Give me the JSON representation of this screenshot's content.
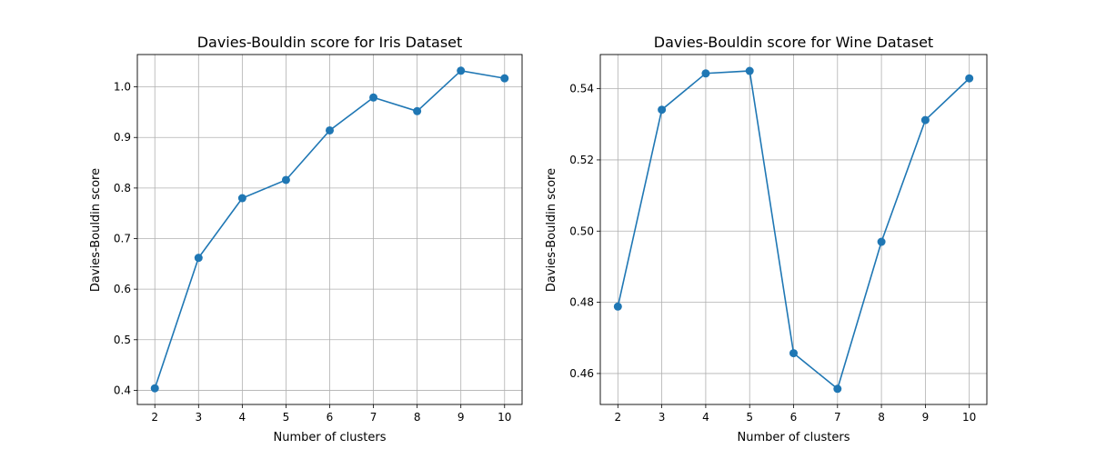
{
  "chart_data": [
    {
      "type": "line",
      "title": "Davies-Bouldin score for Iris Dataset",
      "xlabel": "Number of clusters",
      "ylabel": "Davies-Bouldin score",
      "x": [
        2,
        3,
        4,
        5,
        6,
        7,
        8,
        9,
        10
      ],
      "series": [
        {
          "values": [
            0.404,
            0.662,
            0.78,
            0.816,
            0.914,
            0.979,
            0.952,
            1.032,
            1.017
          ]
        }
      ],
      "xticks": [
        2,
        3,
        4,
        5,
        6,
        7,
        8,
        9,
        10
      ],
      "yticks": [
        0.4,
        0.5,
        0.6,
        0.7,
        0.8,
        0.9,
        1.0
      ],
      "ytick_labels": [
        "0.4",
        "0.5",
        "0.6",
        "0.7",
        "0.8",
        "0.9",
        "1.0"
      ],
      "xlim": [
        1.6,
        10.4
      ],
      "ylim": [
        0.372,
        1.064
      ],
      "grid": true,
      "color": "#1f77b4"
    },
    {
      "type": "line",
      "title": "Davies-Bouldin score for Wine Dataset",
      "xlabel": "Number of clusters",
      "ylabel": "Davies-Bouldin score",
      "x": [
        2,
        3,
        4,
        5,
        6,
        7,
        8,
        9,
        10
      ],
      "series": [
        {
          "values": [
            0.4788,
            0.5341,
            0.5443,
            0.545,
            0.4657,
            0.4557,
            0.497,
            0.5312,
            0.5429
          ]
        }
      ],
      "xticks": [
        2,
        3,
        4,
        5,
        6,
        7,
        8,
        9,
        10
      ],
      "yticks": [
        0.46,
        0.48,
        0.5,
        0.52,
        0.54
      ],
      "ytick_labels": [
        "0.46",
        "0.48",
        "0.50",
        "0.52",
        "0.54"
      ],
      "xlim": [
        1.6,
        10.4
      ],
      "ylim": [
        0.4513,
        0.5496
      ],
      "grid": true,
      "color": "#1f77b4"
    }
  ]
}
